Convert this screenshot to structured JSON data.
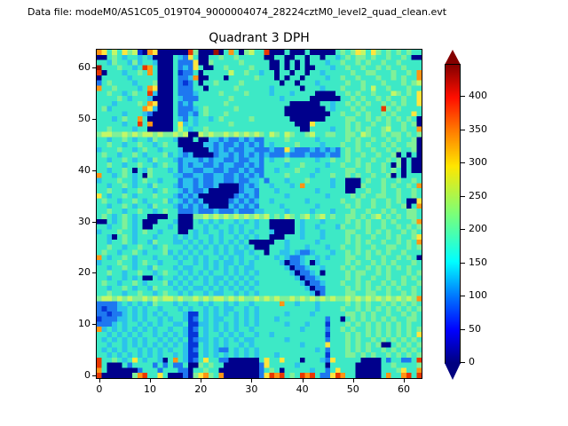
{
  "header": {
    "datafile_label": "Data file: modeM0/AS1C05_019T04_9000004074_28224cztM0_level2_quad_clean.evt",
    "title": "Quadrant 3 DPH"
  },
  "axes": {
    "x_ticks": [
      0,
      10,
      20,
      30,
      40,
      50,
      60
    ],
    "y_ticks": [
      0,
      10,
      20,
      30,
      40,
      50,
      60
    ],
    "x_range": [
      -0.5,
      63.5
    ],
    "y_range": [
      -0.5,
      63.5
    ]
  },
  "colorbar": {
    "ticks": [
      0,
      50,
      100,
      150,
      200,
      250,
      300,
      350,
      400
    ],
    "vmin": 0,
    "vmax": 450,
    "extend": "both",
    "colormap": "jet",
    "extend_max_color": "#840000",
    "extend_min_color": "#000080"
  },
  "chart_data": {
    "type": "heatmap",
    "title": "Quadrant 3 DPH",
    "grid_size": [
      64,
      64
    ],
    "row_order": "top-to-bottom, first row is detector y=63, last row is y=0",
    "value_scale": {
      "0": 10,
      "1": 70,
      "2": 115,
      "3": 155,
      "4": 195,
      "5": 230,
      "6": 265,
      "7": 300,
      "8": 350,
      "9": 410,
      "a": 450
    },
    "palette": {
      "0": "#00008c",
      "1": "#0636d8",
      "2": "#1e78f0",
      "3": "#2cc2ec",
      "4": "#3de9c6",
      "5": "#80f098",
      "6": "#c3f767",
      "7": "#ffe53e",
      "8": "#ff9414",
      "9": "#e93700",
      "a": "#9c0f00"
    },
    "rows": [
      "87464756108700000095000a048405644900040004000004545764754545454  6",
      "0045434434300004327400445445444440044004404404434545545445445400",
      "44354435344300042227005444445444440040404044434454454544544544  50",
      "a4445443498400042327400445444454440040404004443445445445454454  49",
      "9044434454840004122404444464454434404404404434444454455444544548",
      "0444443444440004223800444044444544404044044443445445444544545448",
      "2454444344450004212404454444544444440440444344444544544454445456",
      "8445444434870004222440444445444444344444044434445444546445444544",
      "4454434544930004222344445444454444344434444000044545445444654547",
      "4444543444300004322244444454444444443444440000004454544545445447",
      "4443444454870004232444444544444444444400000044344545454454545447",
      "4534444448730004222345444445444444444000000004344454544495454444",
      "4444434443200004223245444544444444444000000000445445454454544474",
      "4443454484000004324344345444445444444400000004444554454545454540",
      "4444434494800004734344444454444444444440007444444545445445445450",
      "4454444344000004643445444444444444444444004444344545454456445448",
      "5665565656656556560065655656565654654654456445544554654454554545",
      "4434454344354443000400332322323224444544444344444545445445454450",
      "4454434454434544000003323223232324344445444434445445454454544550",
      "3444544345443444300000323232233222322732223232324545445445454450",
      "4544344543444534323000023323232323222322232223224544544544504040",
      "4434454344354443233323233223223324344544444344544545445445450400",
      "4454434454434544232332232332232324444344544443445445454454050400",
      "4434454043544434233223322322323224434445444344444554454454540400",
      "8443454340544443322332233223232324444544443444544545445445040444",
      "3444544345443444233232233223223342444344454444344000454454454454",
      "4434454344354443233232230000232344344434844444344000544454544548",
      "4454434454434544323223000000233244434444444344444004454454454454",
      "7434454344454443232300000002323244444344444443444454544554454454",
      "4544344543444534323230000023232344344444434444445445445445454007",
      "4434454344354443232323000032323244443444444344444545445445445048",
      "4454434454434544222322232223222334444344443444344454454454544554",
      "4543454344000044000556565656565656454654564564544554545645454554",
      "0043454340004443000434343443434344000004344434444545454454544458",
      "4434454340044434000443434434344344000004344344435445454454454545",
      "3444544345443444004343443434343444300004344434444554454545445454",
      "4430454344434443434344343443434344000444344434444545445445454457",
      "4434454344354443343434343434340000044344444344444545454454454548",
      "4454434454434544434343434343434000444344434443445445445445544545",
      "4544344543444534343434434343343440443343223444344545454545445444",
      "8434454344434443434343443434344344434322344343444554454454454540",
      "3444544345443444344343434334343444443022340344444545445454544454",
      "4434454344354443433443434343433444444302234434445454454545454544",
      "4454434454434544343434344343434344444430223404444545544545444545",
      "4434434340043443434343433434343444444443022344444545445445445454",
      "4544344543444534343443434343434344444444302234445445454454545445",
      "4434454344354443434334343434343444444444430224444545454545454454",
      "4454434454434544343443433443434344444444443024444554455445445454",
      "5665656556565665655656566565655656565565656565655656565656565658",
      "2222343434354443434434344343443444448443444344444545454454545454",
      "2122334343443444343443434334434344444444444344445445454545454545",
      "2212234343434344431143434343434344444344443444444554545445445454",
      "1222334343443434431243433443434344434444444442440454545454544554",
      "2223434434343443341133434343434344444344434441444545454545454544",
      "8343434343434434431243434343443444444444344442445454454545454545",
      "4434343434434343431143443434344344344444444441444545454545454547",
      "4343434343443434341233434343433444444344444442444545445454545454",
      "4434434343434343431143434344343444444444344447444545454500454545",
      "4343434434343434431243432243434344444444444342444545454454545454",
      "4434343434343443431143434343434344434444444441444554545445454545",
      "9445434743443048431247442200000047447444044432744444000042442249",
      "9400042444424242240054544000000027444443444440444440000044544445",
      "8400000024442444220445440000000024540444443442474440000044457448",
      "9000000589447400020578548000000027989454989422798440000048448949"
    ]
  }
}
